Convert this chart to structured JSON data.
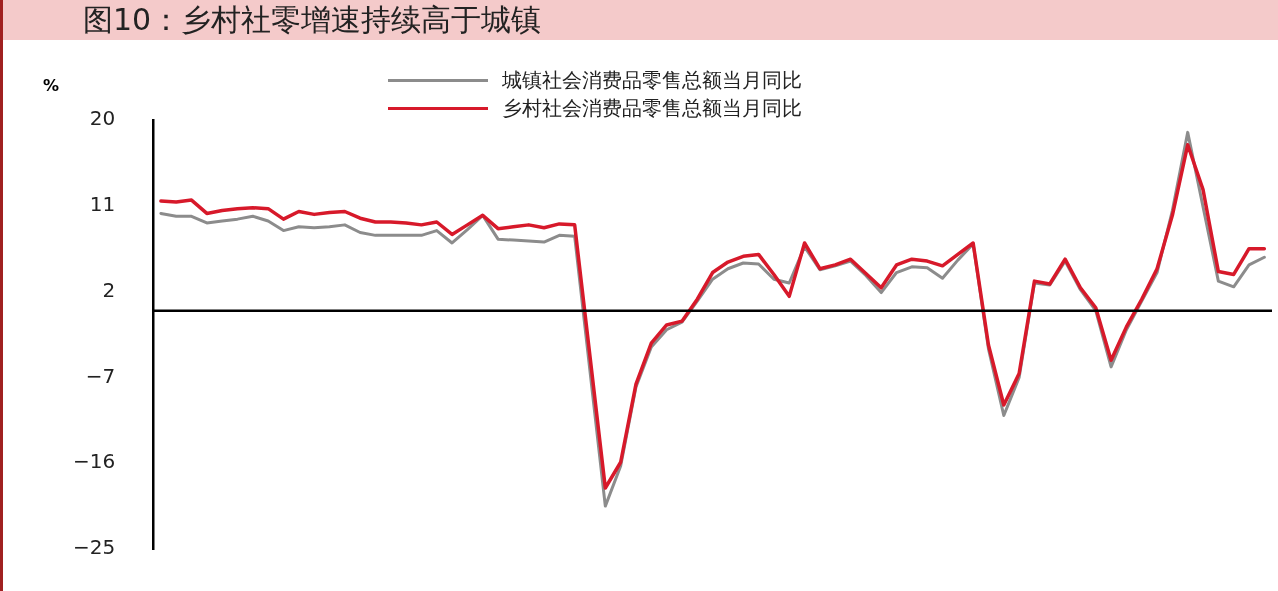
{
  "chart_data": {
    "type": "line",
    "title": "图10：乡村社零增速持续高于城镇",
    "ylabel": "%",
    "categories": [
      null,
      null,
      null,
      null,
      null,
      null,
      null,
      null,
      null,
      null,
      null,
      null,
      null,
      null,
      null,
      null,
      null,
      null,
      null,
      null,
      null,
      null,
      null,
      null,
      null,
      null,
      null,
      null,
      null,
      null,
      null,
      null,
      null,
      null,
      null,
      null,
      null,
      null,
      null,
      null,
      null,
      null,
      null,
      null,
      null,
      null,
      null,
      null,
      null,
      null,
      null,
      null,
      null,
      null,
      null,
      null,
      null,
      null,
      null,
      null,
      null,
      null,
      null,
      null,
      null,
      null,
      null,
      null,
      null,
      null,
      null,
      null,
      null
    ],
    "series": [
      {
        "name": "城镇社会消费品零售总额当月同比",
        "color": "#8c8c8c",
        "values": [
          10.2,
          9.9,
          9.9,
          9.2,
          9.4,
          9.6,
          9.9,
          9.4,
          8.4,
          8.8,
          8.7,
          8.8,
          9.0,
          8.2,
          7.9,
          7.9,
          7.9,
          7.9,
          8.4,
          7.1,
          8.5,
          10.0,
          7.5,
          7.4,
          7.3,
          7.2,
          7.9,
          7.8,
          null,
          -20.5,
          -16.3,
          -8.0,
          -3.8,
          -2.0,
          -1.2,
          1.0,
          3.3,
          4.4,
          5.0,
          4.9,
          3.3,
          2.9,
          6.7,
          4.3,
          4.7,
          5.2,
          3.7,
          1.9,
          4.0,
          4.6,
          4.5,
          3.4,
          5.3,
          7.0,
          -4.0,
          -11.0,
          -7.0,
          2.9,
          2.7,
          5.2,
          2.2,
          0.0,
          -5.9,
          -2.0,
          1.0,
          4.0,
          10.5,
          18.7,
          null,
          3.1,
          2.5,
          4.8,
          5.6
        ]
      },
      {
        "name": "乡村社会消费品零售总额当月同比",
        "color": "#d7192a",
        "values": [
          11.5,
          11.4,
          11.6,
          10.2,
          10.5,
          10.7,
          10.8,
          10.7,
          9.6,
          10.4,
          10.1,
          10.3,
          10.4,
          9.7,
          9.3,
          9.3,
          9.2,
          9.0,
          9.3,
          8.0,
          9.0,
          10.0,
          8.6,
          8.8,
          9.0,
          8.7,
          9.1,
          9.0,
          null,
          -18.6,
          -15.9,
          -7.7,
          -3.4,
          -1.5,
          -1.1,
          1.2,
          4.0,
          5.1,
          5.7,
          5.9,
          3.8,
          1.5,
          7.1,
          4.4,
          4.8,
          5.4,
          3.9,
          2.4,
          4.8,
          5.4,
          5.2,
          4.7,
          5.9,
          7.1,
          -3.6,
          -9.9,
          -6.6,
          3.1,
          2.8,
          5.4,
          2.4,
          0.3,
          -5.2,
          -1.7,
          1.2,
          4.4,
          10.0,
          17.4,
          12.7,
          4.1,
          3.8,
          6.5,
          6.5
        ]
      }
    ],
    "ylim": [
      -25,
      20
    ],
    "yticks": [
      20,
      11,
      2,
      -7,
      -16,
      -25
    ],
    "grid": false,
    "legend": "top",
    "tick_labels": "y",
    "marker": "none",
    "line_style": "solid"
  }
}
